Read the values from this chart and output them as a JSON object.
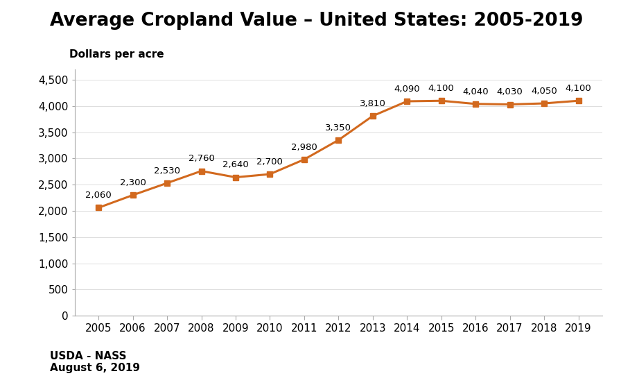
{
  "title": "Average Cropland Value – United States: 2005-2019",
  "ylabel": "Dollars per acre",
  "years": [
    2005,
    2006,
    2007,
    2008,
    2009,
    2010,
    2011,
    2012,
    2013,
    2014,
    2015,
    2016,
    2017,
    2018,
    2019
  ],
  "values": [
    2060,
    2300,
    2530,
    2760,
    2640,
    2700,
    2980,
    3350,
    3810,
    4090,
    4100,
    4040,
    4030,
    4050,
    4100
  ],
  "line_color": "#D2691E",
  "marker_color": "#D2691E",
  "marker_style": "s",
  "marker_size": 6,
  "line_width": 2.2,
  "ylim": [
    0,
    4700
  ],
  "yticks": [
    0,
    500,
    1000,
    1500,
    2000,
    2500,
    3000,
    3500,
    4000,
    4500
  ],
  "source_line1": "USDA - NASS",
  "source_line2": "August 6, 2019",
  "background_color": "#ffffff",
  "title_fontsize": 19,
  "label_fontsize": 11,
  "tick_fontsize": 11,
  "annotation_fontsize": 9.5,
  "source_fontsize": 11
}
